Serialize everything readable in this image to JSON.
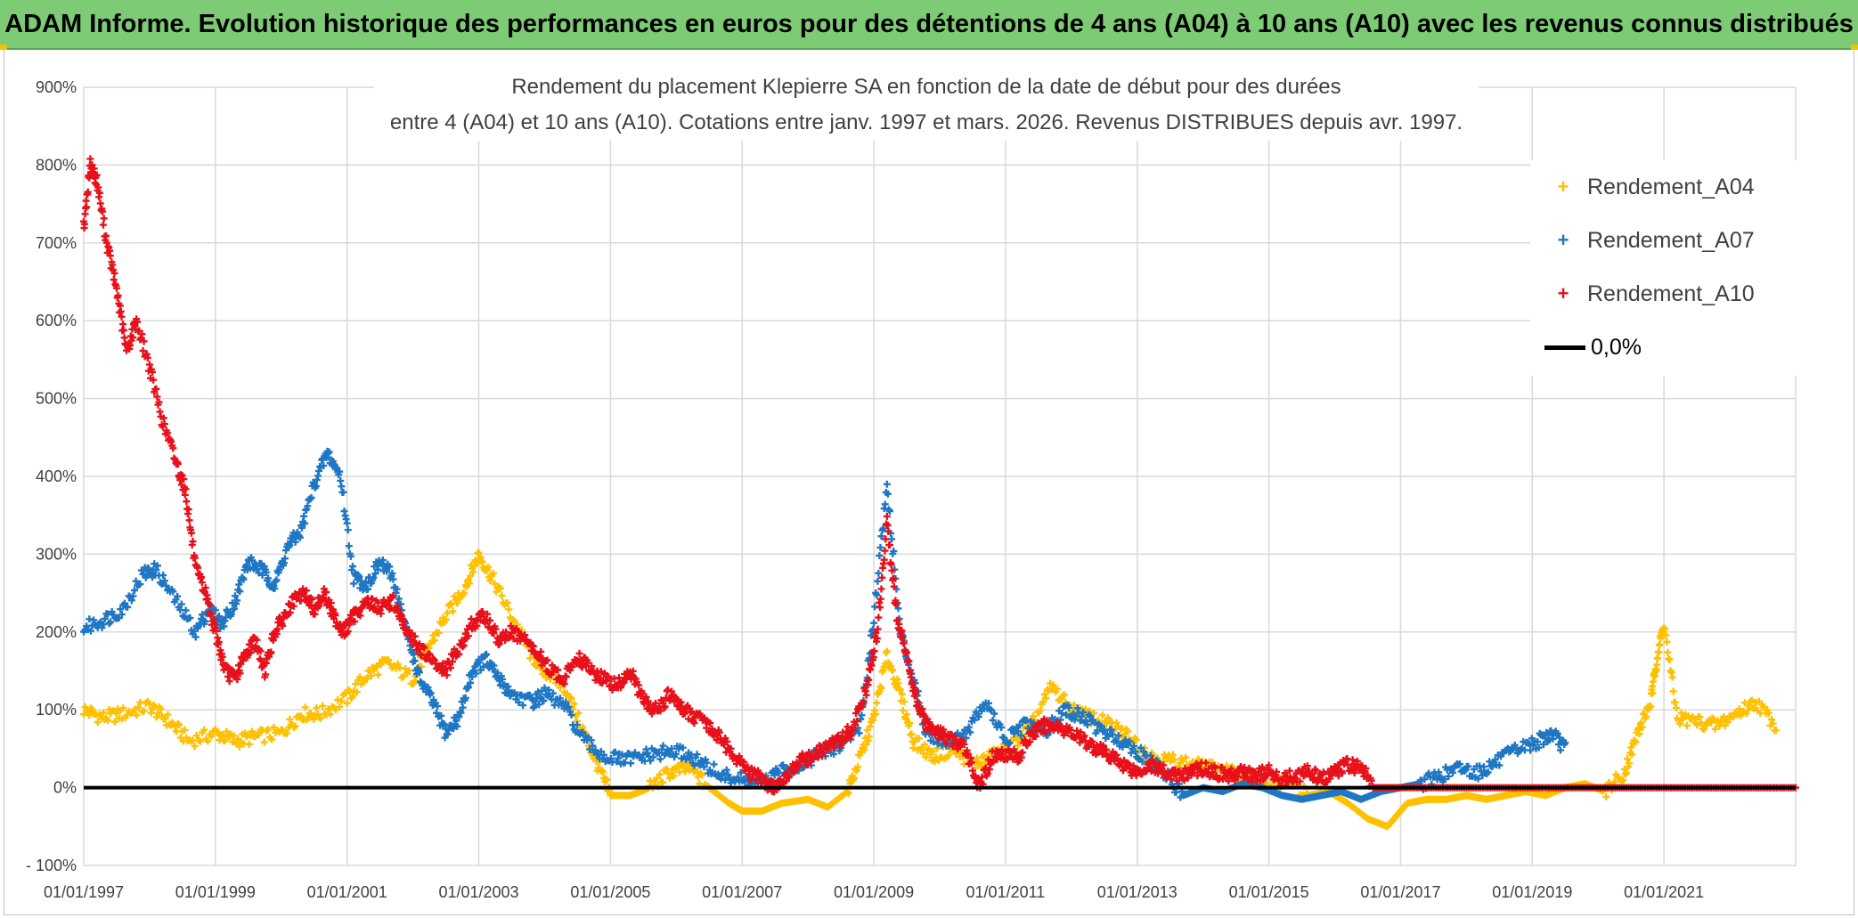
{
  "header": {
    "title": "ADAM Informe. Evolution historique des performances en euros pour des détentions de 4 ans (A04) à 10 ans (A10) avec les revenus connus distribués"
  },
  "chart_data": {
    "type": "scatter",
    "title_line1": "Rendement du placement Klepierre SA en fonction de la date de début pour des durées",
    "title_line2": "entre 4 (A04) et 10 ans (A10). Cotations entre janv. 1997 et mars. 2026. Revenus DISTRIBUES depuis avr. 1997.",
    "xlabel": "",
    "ylabel": "",
    "x_range": [
      "01/01/1997",
      "01/01/2023"
    ],
    "x_tick_labels": [
      "01/01/1997",
      "01/01/1999",
      "01/01/2001",
      "01/01/2003",
      "01/01/2005",
      "01/01/2007",
      "01/01/2009",
      "01/01/2011",
      "01/01/2013",
      "01/01/2015",
      "01/01/2017",
      "01/01/2019",
      "01/01/2021"
    ],
    "y_range_percent": [
      -100,
      900
    ],
    "y_tick_labels": [
      "- 100%",
      "0%",
      "100%",
      "200%",
      "300%",
      "400%",
      "500%",
      "600%",
      "700%",
      "800%",
      "900%"
    ],
    "grid": true,
    "legend_position": "top-right",
    "series": [
      {
        "name": "Rendement_A04",
        "color": "#ffc000",
        "marker": "+",
        "points": [
          [
            1997.0,
            100
          ],
          [
            1997.3,
            90
          ],
          [
            1997.6,
            95
          ],
          [
            1998.0,
            105
          ],
          [
            1998.3,
            85
          ],
          [
            1998.6,
            60
          ],
          [
            1999.0,
            70
          ],
          [
            1999.3,
            60
          ],
          [
            1999.6,
            65
          ],
          [
            2000.0,
            70
          ],
          [
            2000.3,
            95
          ],
          [
            2000.6,
            95
          ],
          [
            2001.0,
            115
          ],
          [
            2001.3,
            145
          ],
          [
            2001.6,
            160
          ],
          [
            2002.0,
            140
          ],
          [
            2002.2,
            175
          ],
          [
            2002.5,
            220
          ],
          [
            2002.8,
            260
          ],
          [
            2003.0,
            300
          ],
          [
            2003.2,
            270
          ],
          [
            2003.5,
            220
          ],
          [
            2003.8,
            170
          ],
          [
            2004.0,
            150
          ],
          [
            2004.3,
            130
          ],
          [
            2004.6,
            70
          ],
          [
            2004.8,
            30
          ],
          [
            2005.0,
            -10
          ],
          [
            2005.3,
            -10
          ],
          [
            2005.6,
            0
          ],
          [
            2005.9,
            20
          ],
          [
            2006.2,
            25
          ],
          [
            2006.5,
            0
          ],
          [
            2006.8,
            -20
          ],
          [
            2007.0,
            -30
          ],
          [
            2007.3,
            -30
          ],
          [
            2007.6,
            -20
          ],
          [
            2008.0,
            -15
          ],
          [
            2008.3,
            -25
          ],
          [
            2008.6,
            -5
          ],
          [
            2008.8,
            40
          ],
          [
            2009.0,
            90
          ],
          [
            2009.2,
            170
          ],
          [
            2009.4,
            120
          ],
          [
            2009.6,
            60
          ],
          [
            2009.9,
            40
          ],
          [
            2010.2,
            50
          ],
          [
            2010.5,
            30
          ],
          [
            2010.8,
            40
          ],
          [
            2011.1,
            55
          ],
          [
            2011.4,
            80
          ],
          [
            2011.7,
            130
          ],
          [
            2012.0,
            100
          ],
          [
            2012.3,
            90
          ],
          [
            2012.6,
            80
          ],
          [
            2012.9,
            65
          ],
          [
            2013.2,
            40
          ],
          [
            2013.5,
            35
          ],
          [
            2013.8,
            30
          ],
          [
            2014.1,
            25
          ],
          [
            2014.4,
            20
          ],
          [
            2014.7,
            10
          ],
          [
            2015.0,
            0
          ],
          [
            2015.3,
            10
          ],
          [
            2015.6,
            -10
          ],
          [
            2015.9,
            -5
          ],
          [
            2016.2,
            -20
          ],
          [
            2016.5,
            -40
          ],
          [
            2016.8,
            -50
          ],
          [
            2017.1,
            -20
          ],
          [
            2017.4,
            -15
          ],
          [
            2017.7,
            -15
          ],
          [
            2018.0,
            -10
          ],
          [
            2018.3,
            -15
          ],
          [
            2018.6,
            -10
          ],
          [
            2018.9,
            -5
          ],
          [
            2019.2,
            -10
          ],
          [
            2019.5,
            0
          ],
          [
            2019.8,
            5
          ],
          [
            2020.1,
            -5
          ],
          [
            2020.4,
            20
          ],
          [
            2020.6,
            70
          ],
          [
            2020.8,
            110
          ],
          [
            2020.9,
            170
          ],
          [
            2021.0,
            210
          ],
          [
            2021.2,
            90
          ],
          [
            2021.5,
            85
          ],
          [
            2021.8,
            80
          ],
          [
            2022.1,
            95
          ],
          [
            2022.4,
            110
          ],
          [
            2022.7,
            80
          ]
        ]
      },
      {
        "name": "Rendement_A07",
        "color": "#1f77c4",
        "marker": "+",
        "points": [
          [
            1997.0,
            205
          ],
          [
            1997.3,
            215
          ],
          [
            1997.6,
            230
          ],
          [
            1997.9,
            275
          ],
          [
            1998.1,
            280
          ],
          [
            1998.4,
            240
          ],
          [
            1998.7,
            200
          ],
          [
            1998.9,
            230
          ],
          [
            1999.1,
            210
          ],
          [
            1999.3,
            240
          ],
          [
            1999.5,
            290
          ],
          [
            1999.7,
            280
          ],
          [
            1999.9,
            260
          ],
          [
            2000.1,
            310
          ],
          [
            2000.3,
            330
          ],
          [
            2000.5,
            390
          ],
          [
            2000.7,
            430
          ],
          [
            2000.9,
            400
          ],
          [
            2001.1,
            270
          ],
          [
            2001.3,
            260
          ],
          [
            2001.5,
            290
          ],
          [
            2001.7,
            270
          ],
          [
            2001.9,
            200
          ],
          [
            2002.1,
            140
          ],
          [
            2002.3,
            110
          ],
          [
            2002.5,
            70
          ],
          [
            2002.7,
            90
          ],
          [
            2002.9,
            150
          ],
          [
            2003.1,
            165
          ],
          [
            2003.3,
            140
          ],
          [
            2003.5,
            120
          ],
          [
            2003.8,
            110
          ],
          [
            2004.0,
            120
          ],
          [
            2004.3,
            105
          ],
          [
            2004.6,
            60
          ],
          [
            2004.9,
            40
          ],
          [
            2005.2,
            35
          ],
          [
            2005.5,
            40
          ],
          [
            2005.8,
            45
          ],
          [
            2006.1,
            45
          ],
          [
            2006.4,
            30
          ],
          [
            2006.7,
            15
          ],
          [
            2007.0,
            10
          ],
          [
            2007.3,
            5
          ],
          [
            2007.6,
            20
          ],
          [
            2007.9,
            30
          ],
          [
            2008.2,
            45
          ],
          [
            2008.5,
            55
          ],
          [
            2008.8,
            80
          ],
          [
            2009.0,
            220
          ],
          [
            2009.2,
            390
          ],
          [
            2009.4,
            200
          ],
          [
            2009.6,
            140
          ],
          [
            2009.8,
            70
          ],
          [
            2010.1,
            60
          ],
          [
            2010.4,
            70
          ],
          [
            2010.7,
            110
          ],
          [
            2011.0,
            60
          ],
          [
            2011.3,
            80
          ],
          [
            2011.6,
            70
          ],
          [
            2011.9,
            100
          ],
          [
            2012.2,
            90
          ],
          [
            2012.5,
            70
          ],
          [
            2012.8,
            60
          ],
          [
            2013.1,
            40
          ],
          [
            2013.4,
            20
          ],
          [
            2013.7,
            -10
          ],
          [
            2014.0,
            0
          ],
          [
            2014.3,
            -5
          ],
          [
            2014.6,
            5
          ],
          [
            2014.9,
            0
          ],
          [
            2015.2,
            -10
          ],
          [
            2015.5,
            -15
          ],
          [
            2015.8,
            -10
          ],
          [
            2016.1,
            -5
          ],
          [
            2016.4,
            -15
          ],
          [
            2016.7,
            -5
          ],
          [
            2017.0,
            0
          ],
          [
            2017.3,
            5
          ],
          [
            2017.6,
            15
          ],
          [
            2017.9,
            25
          ],
          [
            2018.2,
            20
          ],
          [
            2018.5,
            35
          ],
          [
            2018.8,
            50
          ],
          [
            2019.1,
            60
          ],
          [
            2019.3,
            70
          ],
          [
            2019.5,
            50
          ]
        ]
      },
      {
        "name": "Rendement_A10",
        "color": "#e8101a",
        "marker": "+",
        "points": [
          [
            1997.0,
            720
          ],
          [
            1997.1,
            800
          ],
          [
            1997.2,
            780
          ],
          [
            1997.35,
            700
          ],
          [
            1997.5,
            640
          ],
          [
            1997.65,
            560
          ],
          [
            1997.8,
            600
          ],
          [
            1998.0,
            540
          ],
          [
            1998.2,
            470
          ],
          [
            1998.4,
            420
          ],
          [
            1998.55,
            380
          ],
          [
            1998.7,
            280
          ],
          [
            1998.85,
            250
          ],
          [
            1999.0,
            200
          ],
          [
            1999.15,
            150
          ],
          [
            1999.3,
            140
          ],
          [
            1999.45,
            170
          ],
          [
            1999.6,
            190
          ],
          [
            1999.75,
            150
          ],
          [
            1999.9,
            200
          ],
          [
            2000.05,
            220
          ],
          [
            2000.2,
            240
          ],
          [
            2000.35,
            250
          ],
          [
            2000.5,
            230
          ],
          [
            2000.65,
            250
          ],
          [
            2000.8,
            220
          ],
          [
            2000.95,
            200
          ],
          [
            2001.1,
            220
          ],
          [
            2001.3,
            240
          ],
          [
            2001.5,
            230
          ],
          [
            2001.7,
            240
          ],
          [
            2001.9,
            200
          ],
          [
            2002.1,
            180
          ],
          [
            2002.3,
            160
          ],
          [
            2002.5,
            150
          ],
          [
            2002.7,
            180
          ],
          [
            2002.9,
            210
          ],
          [
            2003.1,
            220
          ],
          [
            2003.3,
            190
          ],
          [
            2003.5,
            200
          ],
          [
            2003.7,
            190
          ],
          [
            2003.9,
            170
          ],
          [
            2004.1,
            150
          ],
          [
            2004.3,
            140
          ],
          [
            2004.5,
            170
          ],
          [
            2004.7,
            150
          ],
          [
            2004.9,
            140
          ],
          [
            2005.1,
            130
          ],
          [
            2005.3,
            150
          ],
          [
            2005.5,
            110
          ],
          [
            2005.7,
            100
          ],
          [
            2005.9,
            120
          ],
          [
            2006.1,
            100
          ],
          [
            2006.3,
            90
          ],
          [
            2006.5,
            80
          ],
          [
            2006.7,
            60
          ],
          [
            2006.9,
            40
          ],
          [
            2007.1,
            20
          ],
          [
            2007.3,
            10
          ],
          [
            2007.5,
            0
          ],
          [
            2007.7,
            15
          ],
          [
            2007.9,
            35
          ],
          [
            2008.1,
            40
          ],
          [
            2008.3,
            55
          ],
          [
            2008.5,
            60
          ],
          [
            2008.7,
            80
          ],
          [
            2008.9,
            130
          ],
          [
            2009.05,
            200
          ],
          [
            2009.2,
            340
          ],
          [
            2009.35,
            220
          ],
          [
            2009.5,
            170
          ],
          [
            2009.65,
            110
          ],
          [
            2009.8,
            80
          ],
          [
            2010.0,
            70
          ],
          [
            2010.2,
            60
          ],
          [
            2010.4,
            50
          ],
          [
            2010.6,
            0
          ],
          [
            2010.8,
            40
          ],
          [
            2011.0,
            45
          ],
          [
            2011.2,
            40
          ],
          [
            2011.4,
            70
          ],
          [
            2011.6,
            80
          ],
          [
            2011.8,
            80
          ],
          [
            2012.0,
            70
          ],
          [
            2012.2,
            60
          ],
          [
            2012.4,
            50
          ],
          [
            2012.6,
            40
          ],
          [
            2012.8,
            30
          ],
          [
            2013.0,
            20
          ],
          [
            2013.2,
            30
          ],
          [
            2013.4,
            20
          ],
          [
            2013.6,
            15
          ],
          [
            2013.8,
            20
          ],
          [
            2014.0,
            25
          ],
          [
            2014.2,
            20
          ],
          [
            2014.4,
            15
          ],
          [
            2014.6,
            20
          ],
          [
            2014.8,
            15
          ],
          [
            2015.0,
            20
          ],
          [
            2015.2,
            10
          ],
          [
            2015.4,
            15
          ],
          [
            2015.6,
            20
          ],
          [
            2015.8,
            10
          ],
          [
            2016.0,
            20
          ],
          [
            2016.2,
            30
          ],
          [
            2016.4,
            25
          ],
          [
            2016.6,
            0
          ],
          [
            2017.0,
            0
          ],
          [
            2017.5,
            0
          ],
          [
            2018.0,
            0
          ],
          [
            2018.5,
            0
          ],
          [
            2019.0,
            0
          ],
          [
            2019.5,
            0
          ],
          [
            2020.0,
            0
          ],
          [
            2020.5,
            0
          ],
          [
            2021.0,
            0
          ],
          [
            2021.5,
            0
          ],
          [
            2022.0,
            0
          ],
          [
            2022.5,
            0
          ],
          [
            2023.0,
            0
          ]
        ]
      }
    ],
    "reference_line": {
      "name": "0,0%",
      "y": 0,
      "color": "#000000"
    }
  }
}
